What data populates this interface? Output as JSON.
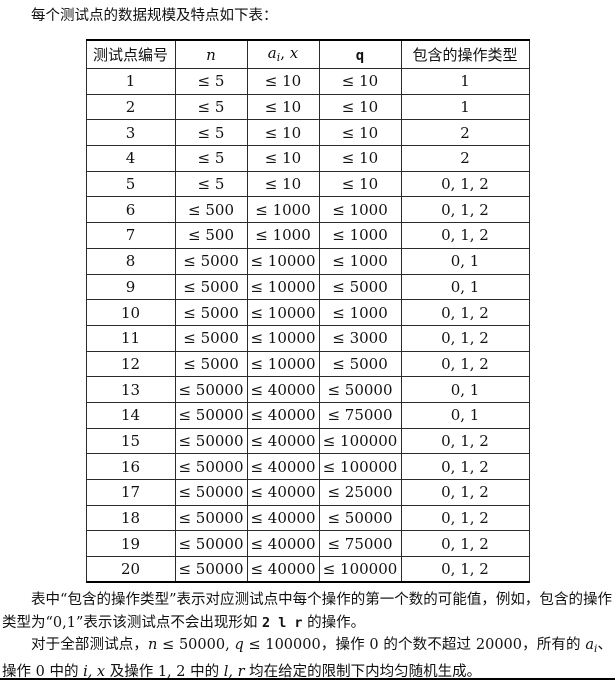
{
  "intro": "每个测试点的数据规模及特点如下表：",
  "table": {
    "headers": [
      [
        {
          "t": "测试点编号",
          "s": "cjk"
        }
      ],
      [
        {
          "t": "n",
          "s": "math"
        }
      ],
      [
        {
          "t": "a",
          "s": "math"
        },
        {
          "t": "i",
          "s": "sub"
        },
        {
          "t": ",",
          "s": "plain"
        },
        {
          "t": " x",
          "s": "math"
        }
      ],
      [
        {
          "t": "q",
          "s": "mono"
        }
      ],
      [
        {
          "t": "包含的操作类型",
          "s": "cjk"
        }
      ]
    ],
    "rows": [
      [
        "1",
        "≤ 5",
        "≤ 10",
        "≤ 10",
        "1"
      ],
      [
        "2",
        "≤ 5",
        "≤ 10",
        "≤ 10",
        "1"
      ],
      [
        "3",
        "≤ 5",
        "≤ 10",
        "≤ 10",
        "2"
      ],
      [
        "4",
        "≤ 5",
        "≤ 10",
        "≤ 10",
        "2"
      ],
      [
        "5",
        "≤ 5",
        "≤ 10",
        "≤ 10",
        "0, 1, 2"
      ],
      [
        "6",
        "≤ 500",
        "≤ 1000",
        "≤ 1000",
        "0, 1, 2"
      ],
      [
        "7",
        "≤ 500",
        "≤ 1000",
        "≤ 1000",
        "0, 1, 2"
      ],
      [
        "8",
        "≤ 5000",
        "≤ 10000",
        "≤ 1000",
        "0, 1"
      ],
      [
        "9",
        "≤ 5000",
        "≤ 10000",
        "≤ 5000",
        "0, 1"
      ],
      [
        "10",
        "≤ 5000",
        "≤ 10000",
        "≤ 1000",
        "0, 1, 2"
      ],
      [
        "11",
        "≤ 5000",
        "≤ 10000",
        "≤ 3000",
        "0, 1, 2"
      ],
      [
        "12",
        "≤ 5000",
        "≤ 10000",
        "≤ 5000",
        "0, 1, 2"
      ],
      [
        "13",
        "≤ 50000",
        "≤ 40000",
        "≤ 50000",
        "0, 1"
      ],
      [
        "14",
        "≤ 50000",
        "≤ 40000",
        "≤ 75000",
        "0, 1"
      ],
      [
        "15",
        "≤ 50000",
        "≤ 40000",
        "≤ 100000",
        "0, 1, 2"
      ],
      [
        "16",
        "≤ 50000",
        "≤ 40000",
        "≤ 100000",
        "0, 1, 2"
      ],
      [
        "17",
        "≤ 50000",
        "≤ 40000",
        "≤ 25000",
        "0, 1, 2"
      ],
      [
        "18",
        "≤ 50000",
        "≤ 40000",
        "≤ 50000",
        "0, 1, 2"
      ],
      [
        "19",
        "≤ 50000",
        "≤ 40000",
        "≤ 75000",
        "0, 1, 2"
      ],
      [
        "20",
        "≤ 50000",
        "≤ 40000",
        "≤ 100000",
        "0, 1, 2"
      ]
    ]
  },
  "notes": {
    "paragraphs": [
      [
        {
          "t": "表中“包含的操作类型”表示对应测试点中每个操作的第一个数的可能值，例如，包含的操作类型为“0,1”表示该测试点不会出现形如 ",
          "s": "cjk"
        },
        {
          "t": "2 l r",
          "s": "mono"
        },
        {
          "t": " 的操作。",
          "s": "cjk"
        }
      ],
      [
        {
          "t": "对于全部测试点，",
          "s": "cjk"
        },
        {
          "t": "n",
          "s": "math"
        },
        {
          "t": " ≤ 50000",
          "s": "plain"
        },
        {
          "t": ", ",
          "s": "plain"
        },
        {
          "t": "q",
          "s": "math"
        },
        {
          "t": " ≤ 100000",
          "s": "plain"
        },
        {
          "t": "，操作 0 的个数不超过 20000，所有的 ",
          "s": "cjk"
        },
        {
          "t": "a",
          "s": "math"
        },
        {
          "t": "i",
          "s": "sub"
        },
        {
          "t": "、操作 0 中的 ",
          "s": "cjk"
        },
        {
          "t": "i, x",
          "s": "math"
        },
        {
          "t": " 及操作 1, 2 中的 ",
          "s": "cjk"
        },
        {
          "t": "l, r",
          "s": "math"
        },
        {
          "t": " 均在给定的限制下内均匀随机生成。",
          "s": "cjk"
        }
      ]
    ]
  }
}
